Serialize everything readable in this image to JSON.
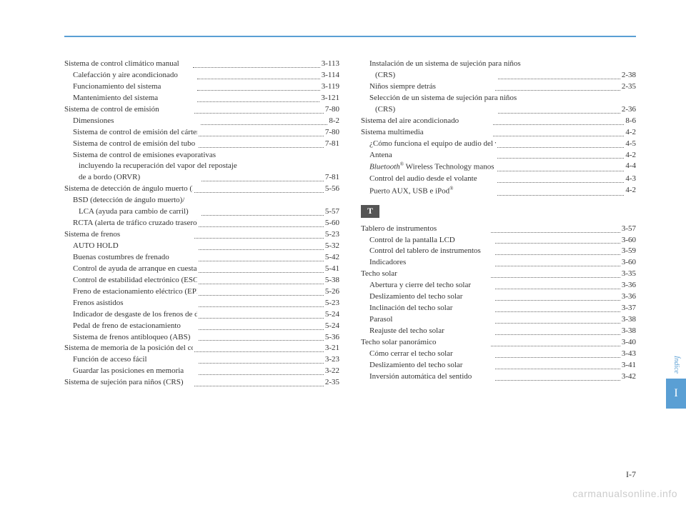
{
  "colors": {
    "accent": "#5a9fd4",
    "text": "#333333",
    "sectionHeaderBg": "#555555",
    "watermark": "#cccccc"
  },
  "leftColumn": [
    {
      "label": "Sistema de control climático manual",
      "page": "3-113",
      "indent": 0
    },
    {
      "label": "Calefacción y aire acondicionado",
      "page": "3-114",
      "indent": 1
    },
    {
      "label": "Funcionamiento del sistema",
      "page": "3-119",
      "indent": 1
    },
    {
      "label": "Mantenimiento del sistema",
      "page": "3-121",
      "indent": 1
    },
    {
      "label": "Sistema de control de emisión",
      "page": "7-80",
      "indent": 0
    },
    {
      "label": "Dimensiones",
      "page": "8-2",
      "indent": 1
    },
    {
      "label": "Sistema de control de emisión del cárter",
      "page": "7-80",
      "indent": 1
    },
    {
      "label": "Sistema de control de emisión del tubo de escape",
      "page": "7-81",
      "indent": 1
    },
    {
      "label": "Sistema de control de emisiones evaporativas",
      "page": "",
      "indent": 1,
      "noref": true
    },
    {
      "label": "incluyendo la recuperación del vapor del repostaje",
      "page": "",
      "indent": 2,
      "noref": true
    },
    {
      "label": "de a bordo (ORVR)",
      "page": "7-81",
      "indent": 2
    },
    {
      "label": "Sistema de detección de ángulo muerto (BSD)",
      "page": "5-56",
      "indent": 0
    },
    {
      "label": "BSD (detección de ángulo muerto)/",
      "page": "",
      "indent": 1,
      "noref": true
    },
    {
      "label": "LCA (ayuda para cambio de carril)",
      "page": "5-57",
      "indent": 2
    },
    {
      "label": "RCTA (alerta de tráfico cruzado trasero)",
      "page": "5-60",
      "indent": 1
    },
    {
      "label": "Sistema de frenos",
      "page": "5-23",
      "indent": 0
    },
    {
      "label": "AUTO HOLD",
      "page": "5-32",
      "indent": 1
    },
    {
      "label": "Buenas costumbres de frenado",
      "page": "5-42",
      "indent": 1
    },
    {
      "label": "Control de ayuda de arranque en cuesta (HAC)",
      "page": "5-41",
      "indent": 1
    },
    {
      "label": "Control de estabilidad electrónico (ESC)",
      "page": "5-38",
      "indent": 1
    },
    {
      "label": "Freno de estacionamiento eléctrico (EPB)",
      "page": "5-26",
      "indent": 1
    },
    {
      "label": "Frenos asistidos",
      "page": "5-23",
      "indent": 1
    },
    {
      "label": "Indicador de desgaste de los frenos de disco",
      "page": "5-24",
      "indent": 1
    },
    {
      "label": "Pedal de freno de estacionamiento",
      "page": "5-24",
      "indent": 1
    },
    {
      "label": "Sistema de frenos antibloqueo (ABS)",
      "page": "5-36",
      "indent": 1
    },
    {
      "label": "Sistema de memoria de la posición del conductor",
      "page": "3-21",
      "indent": 0
    },
    {
      "label": "Función de acceso fácil",
      "page": "3-23",
      "indent": 1
    },
    {
      "label": "Guardar las posiciones en memoria",
      "page": "3-22",
      "indent": 1
    },
    {
      "label": "Sistema de sujeción para niños (CRS)",
      "page": "2-35",
      "indent": 0
    }
  ],
  "rightColumnTop": [
    {
      "label": "Instalación de un sistema de sujeción para niños",
      "page": "",
      "indent": 1,
      "noref": true
    },
    {
      "label": "(CRS)",
      "page": "2-38",
      "indent": 2
    },
    {
      "label": "Niños siempre detrás",
      "page": "2-35",
      "indent": 1
    },
    {
      "label": "Selección de un sistema de sujeción para niños",
      "page": "",
      "indent": 1,
      "noref": true
    },
    {
      "label": "(CRS)",
      "page": "2-36",
      "indent": 2
    },
    {
      "label": "Sistema del aire acondicionado",
      "page": "8-6",
      "indent": 0
    },
    {
      "label": "Sistema multimedia",
      "page": "4-2",
      "indent": 0
    },
    {
      "label": "¿Cómo funciona el equipo de audio del vehículo?",
      "page": "4-5",
      "indent": 1
    },
    {
      "label": "Antena",
      "page": "4-2",
      "indent": 1
    }
  ],
  "bluetoothEntry": {
    "prefix": "Bluetooth",
    "suffix": " Wireless Technology manos libres",
    "page": "4-4",
    "indent": 1
  },
  "rightColumnAfterBt": [
    {
      "label": "Control del audio desde el volante",
      "page": "4-3",
      "indent": 1
    }
  ],
  "ipodEntry": {
    "prefix": "Puerto AUX, USB e iPod",
    "page": "4-2",
    "indent": 1
  },
  "sectionLetter": "T",
  "rightColumnBottom": [
    {
      "label": "Tablero de instrumentos",
      "page": "3-57",
      "indent": 0
    },
    {
      "label": "Control de la pantalla LCD",
      "page": "3-60",
      "indent": 1
    },
    {
      "label": "Control del tablero de instrumentos",
      "page": "3-59",
      "indent": 1
    },
    {
      "label": "Indicadores",
      "page": "3-60",
      "indent": 1
    },
    {
      "label": "Techo solar",
      "page": "3-35",
      "indent": 0
    },
    {
      "label": "Abertura y cierre del techo solar",
      "page": "3-36",
      "indent": 1
    },
    {
      "label": "Deslizamiento del techo solar",
      "page": "3-36",
      "indent": 1
    },
    {
      "label": "Inclinación del techo solar",
      "page": "3-37",
      "indent": 1
    },
    {
      "label": "Parasol",
      "page": "3-38",
      "indent": 1
    },
    {
      "label": "Reajuste del techo solar",
      "page": "3-38",
      "indent": 1
    },
    {
      "label": "Techo solar panorámico",
      "page": "3-40",
      "indent": 0
    },
    {
      "label": "Cómo cerrar el techo solar",
      "page": "3-43",
      "indent": 1
    },
    {
      "label": "Deslizamiento del techo solar",
      "page": "3-41",
      "indent": 1
    },
    {
      "label": "Inversión automática del sentido",
      "page": "3-42",
      "indent": 1
    }
  ],
  "sideTab": {
    "label": "Índice",
    "letter": "I"
  },
  "pageNumber": "I-7",
  "watermark": "carmanualsonline.info"
}
